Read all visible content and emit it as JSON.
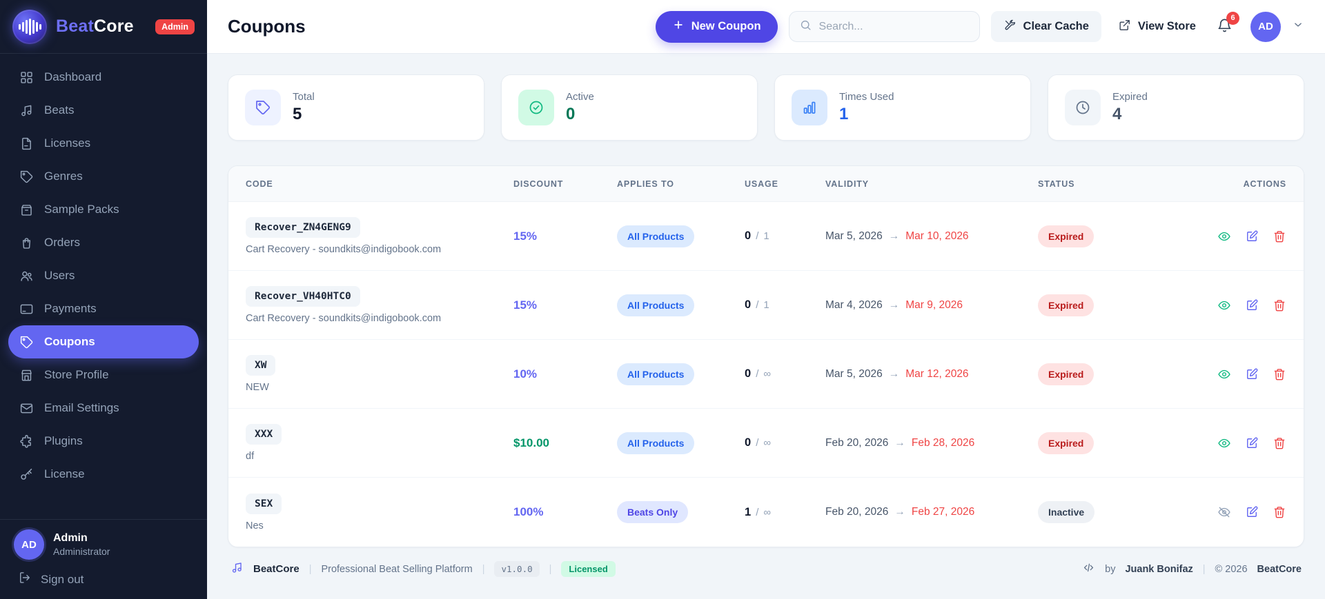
{
  "brand": {
    "name_part1": "Beat",
    "name_part2": "Core",
    "admin_badge": "Admin"
  },
  "sidebar": {
    "items": [
      {
        "label": "Dashboard",
        "icon": "grid",
        "active": false
      },
      {
        "label": "Beats",
        "icon": "music-note",
        "active": false
      },
      {
        "label": "Licenses",
        "icon": "file-text",
        "active": false
      },
      {
        "label": "Genres",
        "icon": "tag",
        "active": false
      },
      {
        "label": "Sample Packs",
        "icon": "box",
        "active": false
      },
      {
        "label": "Orders",
        "icon": "shopping-bag",
        "active": false
      },
      {
        "label": "Users",
        "icon": "users",
        "active": false
      },
      {
        "label": "Payments",
        "icon": "credit-card",
        "active": false
      },
      {
        "label": "Coupons",
        "icon": "tag",
        "active": true
      },
      {
        "label": "Store Profile",
        "icon": "storefront",
        "active": false
      },
      {
        "label": "Email Settings",
        "icon": "envelope",
        "active": false
      },
      {
        "label": "Plugins",
        "icon": "puzzle",
        "active": false
      },
      {
        "label": "License",
        "icon": "key",
        "active": false
      }
    ],
    "user": {
      "initials": "AD",
      "name": "Admin",
      "role": "Administrator"
    },
    "signout_label": "Sign out"
  },
  "header": {
    "title": "Coupons",
    "new_coupon_label": "New Coupon",
    "search_placeholder": "Search...",
    "clear_cache_label": "Clear Cache",
    "view_store_label": "View Store",
    "notification_count": "6",
    "avatar_initials": "AD"
  },
  "stats": [
    {
      "label": "Total",
      "value": "5",
      "icon": "tag",
      "variant": "indigo"
    },
    {
      "label": "Active",
      "value": "0",
      "icon": "check-circle",
      "variant": "green"
    },
    {
      "label": "Times Used",
      "value": "1",
      "icon": "bar-chart",
      "variant": "blue"
    },
    {
      "label": "Expired",
      "value": "4",
      "icon": "clock",
      "variant": "gray"
    }
  ],
  "table": {
    "columns": [
      "CODE",
      "DISCOUNT",
      "APPLIES TO",
      "USAGE",
      "VALIDITY",
      "STATUS",
      "ACTIONS"
    ],
    "usage_separator": "/",
    "arrow": "→",
    "rows": [
      {
        "code": "Recover_ZN4GENG9",
        "description": "Cart Recovery - soundkits@indigobook.com",
        "discount": "15%",
        "discount_type": "percent",
        "applies_to": "All Products",
        "applies_variant": "all",
        "used": "0",
        "limit": "1",
        "valid_from": "Mar 5, 2026",
        "valid_to": "Mar 10, 2026",
        "status": "Expired",
        "status_variant": "expired",
        "visibility_icon": "eye"
      },
      {
        "code": "Recover_VH40HTC0",
        "description": "Cart Recovery - soundkits@indigobook.com",
        "discount": "15%",
        "discount_type": "percent",
        "applies_to": "All Products",
        "applies_variant": "all",
        "used": "0",
        "limit": "1",
        "valid_from": "Mar 4, 2026",
        "valid_to": "Mar 9, 2026",
        "status": "Expired",
        "status_variant": "expired",
        "visibility_icon": "eye"
      },
      {
        "code": "XW",
        "description": "NEW",
        "discount": "10%",
        "discount_type": "percent",
        "applies_to": "All Products",
        "applies_variant": "all",
        "used": "0",
        "limit": "∞",
        "valid_from": "Mar 5, 2026",
        "valid_to": "Mar 12, 2026",
        "status": "Expired",
        "status_variant": "expired",
        "visibility_icon": "eye"
      },
      {
        "code": "XXX",
        "description": "df",
        "discount": "$10.00",
        "discount_type": "fixed",
        "applies_to": "All Products",
        "applies_variant": "all",
        "used": "0",
        "limit": "∞",
        "valid_from": "Feb 20, 2026",
        "valid_to": "Feb 28, 2026",
        "status": "Expired",
        "status_variant": "expired",
        "visibility_icon": "eye"
      },
      {
        "code": "SEX",
        "description": "Nes",
        "discount": "100%",
        "discount_type": "percent",
        "applies_to": "Beats Only",
        "applies_variant": "beats",
        "used": "1",
        "limit": "∞",
        "valid_from": "Feb 20, 2026",
        "valid_to": "Feb 27, 2026",
        "status": "Inactive",
        "status_variant": "inactive",
        "visibility_icon": "eye-off"
      }
    ]
  },
  "footer": {
    "brand": "BeatCore",
    "tagline": "Professional Beat Selling Platform",
    "version": "v1.0.0",
    "license_badge": "Licensed",
    "credit_prefix": "by",
    "credit_name": "Juank Bonifaz",
    "divider": "|",
    "copyright": "© 2026",
    "copyright_brand": "BeatCore"
  },
  "colors": {
    "accent": "#4f46e5",
    "active_item": "#6366f1",
    "sidebar_bg": "#141b2e",
    "badge_red": "#ef4444",
    "success_green": "#10b981",
    "info_blue": "#3b82f6",
    "expired_text": "#b91c1c",
    "main_bg": "#f1f5f9"
  }
}
